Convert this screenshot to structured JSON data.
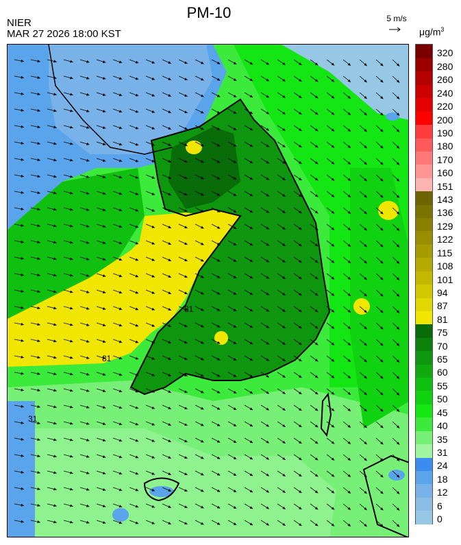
{
  "header": {
    "title": "PM-10",
    "agency": "NIER",
    "timestamp": "MAR 27 2026 18:00 KST",
    "wind_scale_label": "5 m/s",
    "unit_base": "μg/m",
    "unit_exp": "3"
  },
  "map": {
    "contour_label_81_a": "81",
    "contour_label_81_b": "81",
    "contour_label_31": "31"
  },
  "legend": {
    "bins": [
      {
        "label": "0",
        "color": "#96c8e6"
      },
      {
        "label": "6",
        "color": "#8cbde4"
      },
      {
        "label": "12",
        "color": "#78b2e8"
      },
      {
        "label": "18",
        "color": "#5aa4ec"
      },
      {
        "label": "24",
        "color": "#3c8cf0"
      },
      {
        "label": "31",
        "color": "#a0f5a0"
      },
      {
        "label": "35",
        "color": "#78f078"
      },
      {
        "label": "40",
        "color": "#3cea3c"
      },
      {
        "label": "45",
        "color": "#14e614"
      },
      {
        "label": "50",
        "color": "#10d210"
      },
      {
        "label": "55",
        "color": "#10c010"
      },
      {
        "label": "60",
        "color": "#10aa10"
      },
      {
        "label": "65",
        "color": "#0e960e"
      },
      {
        "label": "70",
        "color": "#0c820c"
      },
      {
        "label": "75",
        "color": "#086c08"
      },
      {
        "label": "81",
        "color": "#f0e600"
      },
      {
        "label": "87",
        "color": "#e2d800"
      },
      {
        "label": "94",
        "color": "#d2c800"
      },
      {
        "label": "101",
        "color": "#c2b800"
      },
      {
        "label": "108",
        "color": "#b4aa00"
      },
      {
        "label": "115",
        "color": "#a69c00"
      },
      {
        "label": "122",
        "color": "#988e00"
      },
      {
        "label": "129",
        "color": "#8a8000"
      },
      {
        "label": "136",
        "color": "#7c7200"
      },
      {
        "label": "143",
        "color": "#6e6400"
      },
      {
        "label": "151",
        "color": "#ffb4b4"
      },
      {
        "label": "160",
        "color": "#ff9696"
      },
      {
        "label": "170",
        "color": "#ff7878"
      },
      {
        "label": "180",
        "color": "#ff5a5a"
      },
      {
        "label": "190",
        "color": "#ff3c3c"
      },
      {
        "label": "200",
        "color": "#ff0000"
      },
      {
        "label": "220",
        "color": "#e60000"
      },
      {
        "label": "240",
        "color": "#cc0000"
      },
      {
        "label": "260",
        "color": "#b40000"
      },
      {
        "label": "280",
        "color": "#9a0000"
      },
      {
        "label": "320",
        "color": "#7a0000"
      }
    ]
  }
}
